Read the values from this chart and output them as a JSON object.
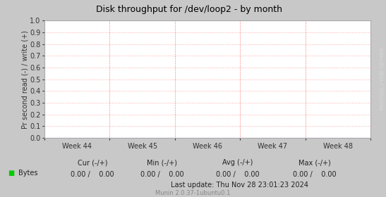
{
  "title": "Disk throughput for /dev/loop2 - by month",
  "ylabel": "Pr second read (-) / write (+)",
  "ylim": [
    0.0,
    1.0
  ],
  "yticks": [
    0.0,
    0.1,
    0.2,
    0.3,
    0.4,
    0.5,
    0.6,
    0.7,
    0.8,
    0.9,
    1.0
  ],
  "x_week_labels": [
    "Week 44",
    "Week 45",
    "Week 46",
    "Week 47",
    "Week 48"
  ],
  "grid_color": "#ffaaaa",
  "vline_color": "#ff6666",
  "background_color": "#c8c8c8",
  "plot_bg_color": "#ffffff",
  "title_color": "#000000",
  "title_fontsize": 9,
  "ylabel_fontsize": 7,
  "tick_fontsize": 7,
  "label_fontsize": 7,
  "footer_fontsize": 6,
  "watermark_text": "RRDTOOL / TOBI OETIKER",
  "watermark_color": "#d8d8d8",
  "legend_label": "Bytes",
  "legend_color": "#00cc00",
  "cur_label": "Cur (-/+)",
  "min_label": "Min (-/+)",
  "avg_label": "Avg (-/+)",
  "max_label": "Max (-/+)",
  "cur_val": "0.00 /    0.00",
  "min_val": "0.00 /    0.00",
  "avg_val": "0.00 /    0.00",
  "max_val": "0.00 /    0.00",
  "last_update": "Last update: Thu Nov 28 23:01:23 2024",
  "munin_text": "Munin 2.0.37-1ubuntu0.1"
}
